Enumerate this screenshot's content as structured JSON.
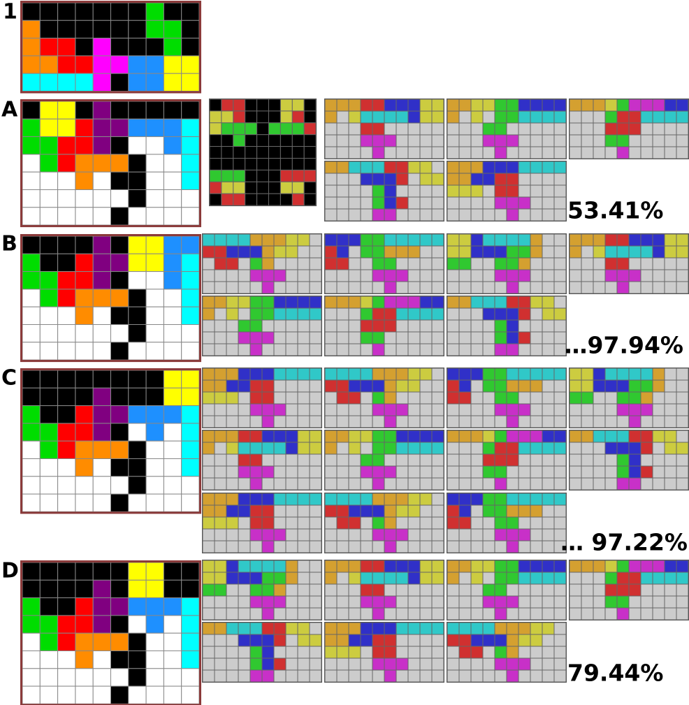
{
  "panels": [
    {
      "label": "1"
    },
    {
      "label": "A",
      "score": "53.41%"
    },
    {
      "label": "B",
      "score": "…97.94%"
    },
    {
      "label": "C",
      "score": "… 97.22%"
    },
    {
      "label": "D",
      "score": "79.44%"
    }
  ]
}
